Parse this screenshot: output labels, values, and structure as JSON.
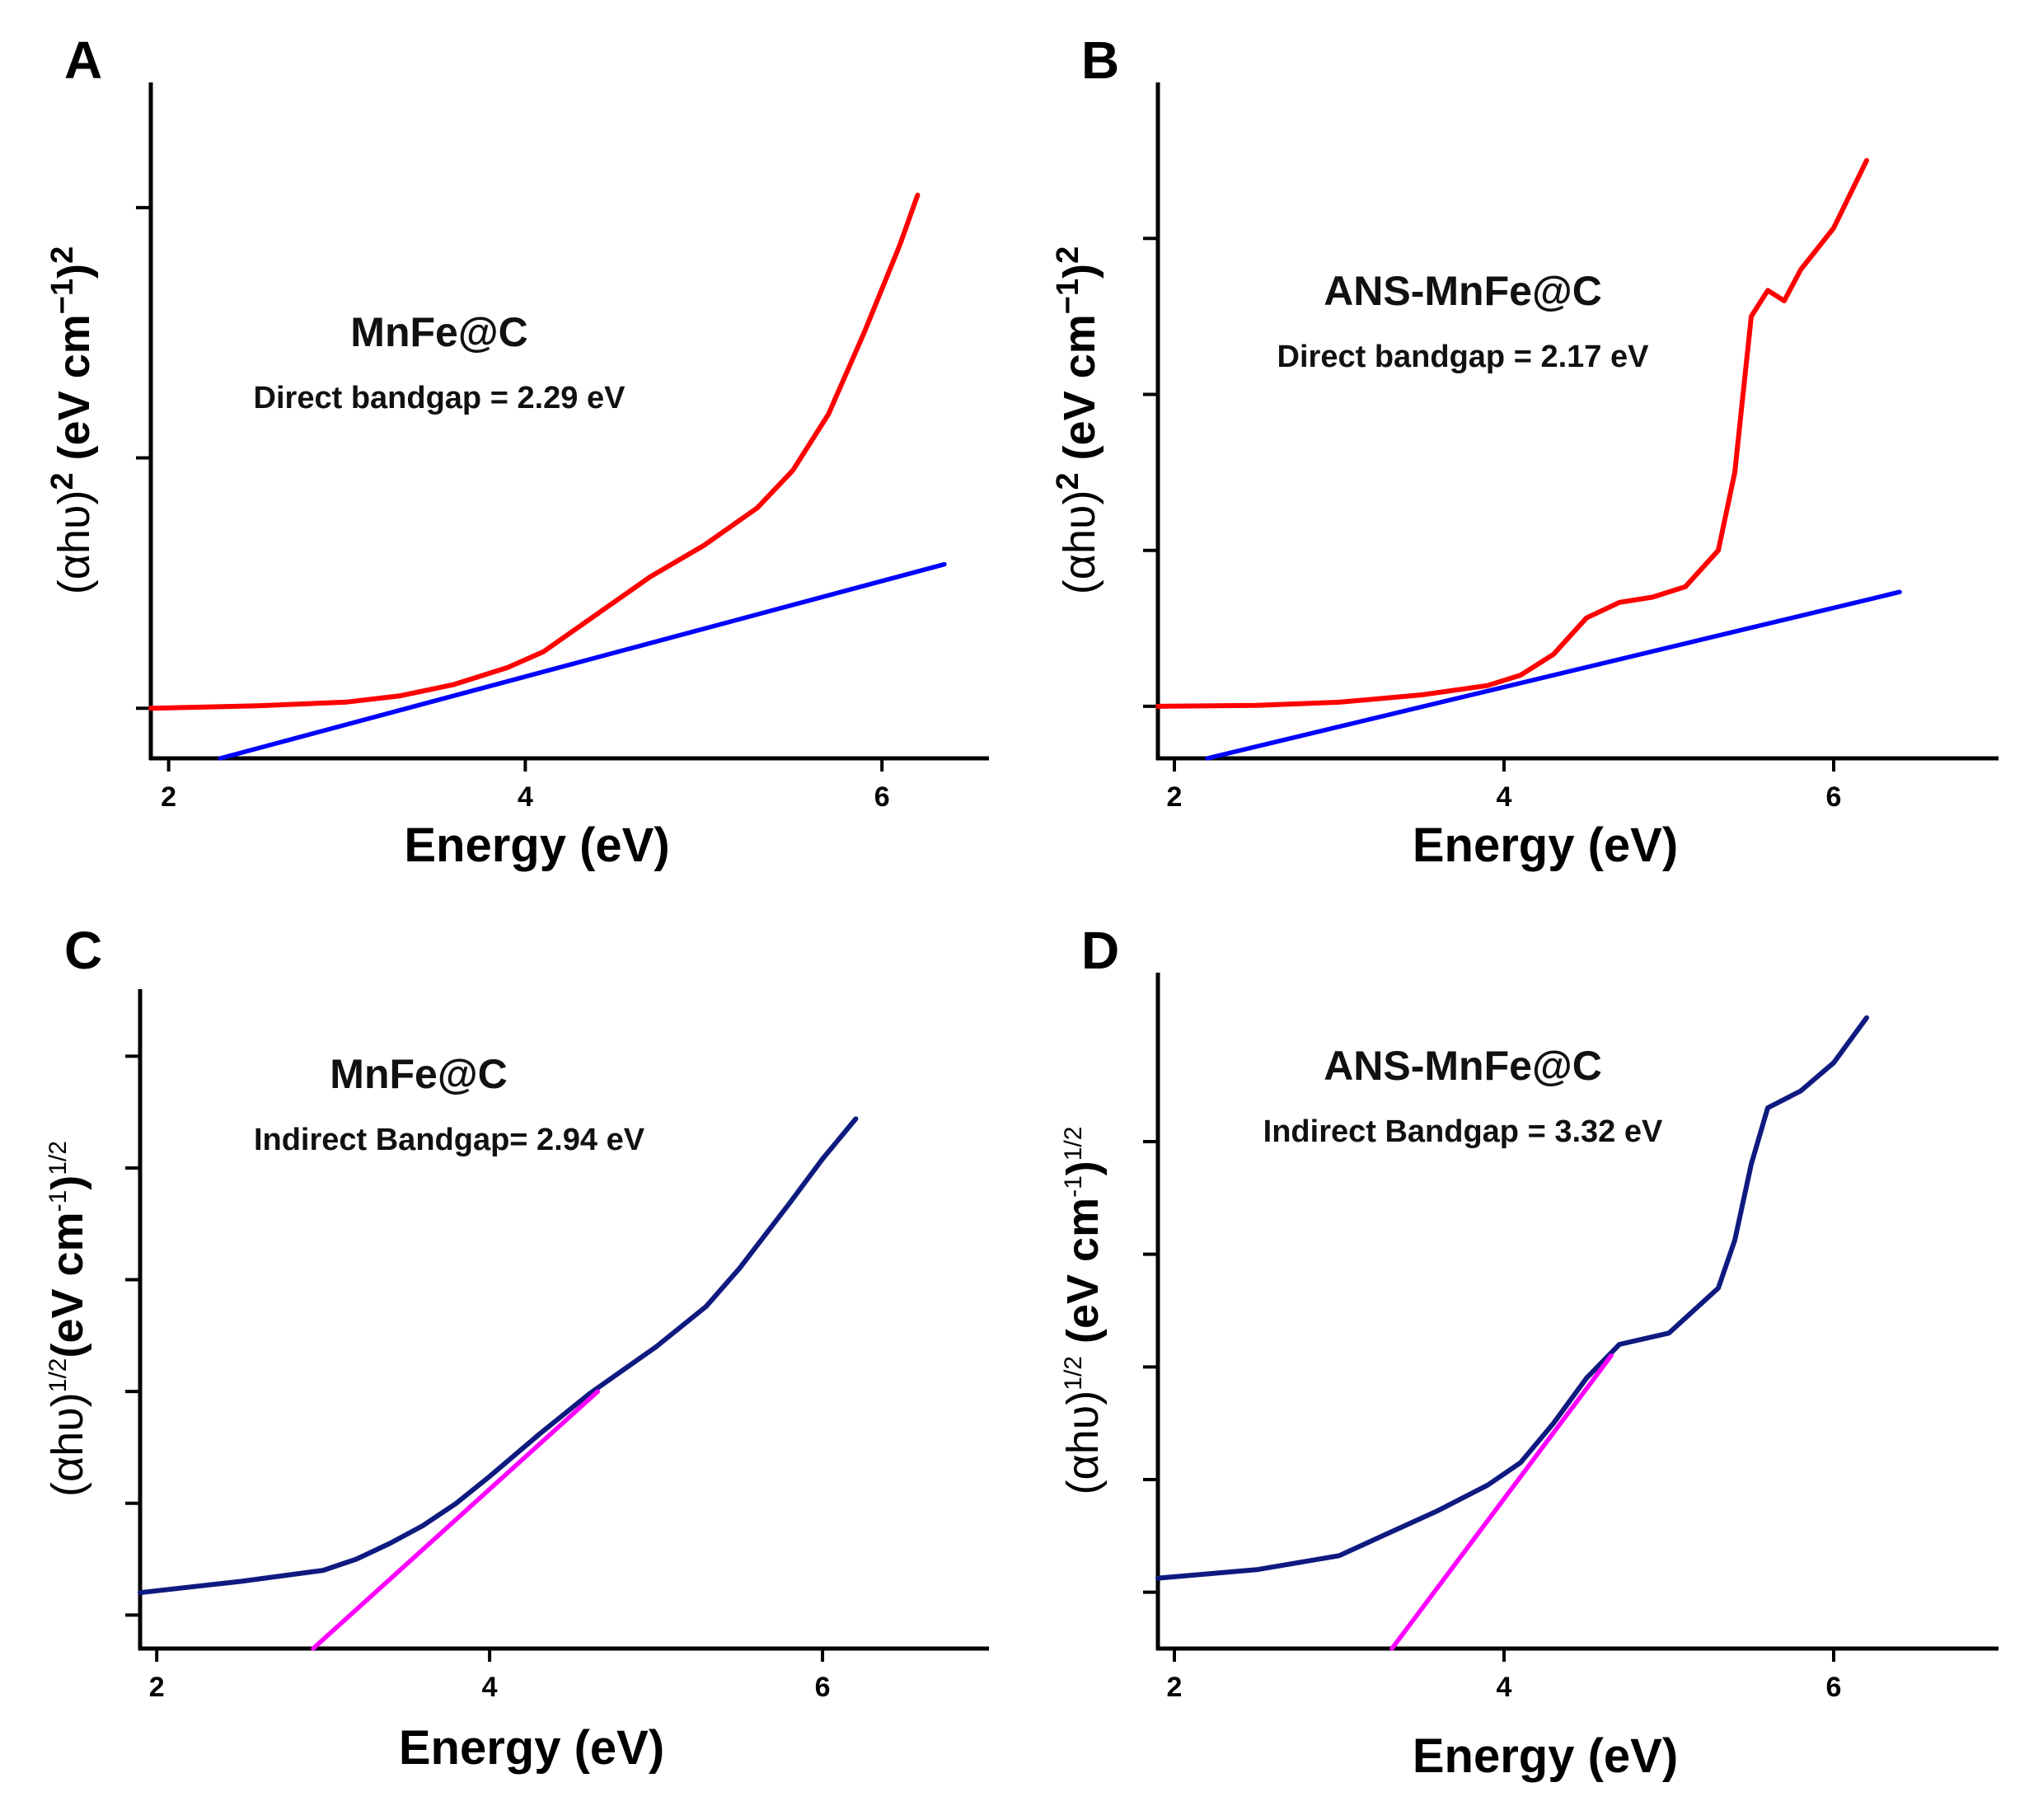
{
  "chart_data": [
    {
      "panel": "A",
      "type": "line",
      "sample": "MnFe@C",
      "annotation": "Direct bandgap = 2.29 eV",
      "xlabel": "Energy (eV)",
      "ylabel_parts": [
        "(αhυ)",
        "2",
        " (eV cm",
        "−1",
        ")",
        "2"
      ],
      "xlim": [
        1.9,
        6.6
      ],
      "ylim": [
        -0.08,
        1.0
      ],
      "xticks": [
        2,
        4,
        6
      ],
      "yticks": [
        0.0,
        0.4,
        0.8
      ],
      "series": [
        {
          "name": "spectrum",
          "color": "#ff0000",
          "x": [
            1.9,
            2.5,
            3.0,
            3.3,
            3.6,
            3.9,
            4.1,
            4.3,
            4.5,
            4.7,
            5.0,
            5.3,
            5.5,
            5.7,
            5.9,
            6.1,
            6.2
          ],
          "y": [
            0.0,
            0.004,
            0.01,
            0.02,
            0.038,
            0.065,
            0.09,
            0.13,
            0.17,
            0.21,
            0.26,
            0.32,
            0.38,
            0.47,
            0.6,
            0.74,
            0.82
          ]
        },
        {
          "name": "tangent",
          "color": "#0000ff",
          "x": [
            2.29,
            6.35
          ],
          "y": [
            -0.08,
            0.23
          ]
        }
      ]
    },
    {
      "panel": "B",
      "type": "line",
      "sample": "ANS-MnFe@C",
      "annotation": "Direct bandgap = 2.17 eV",
      "xlabel": "Energy (eV)",
      "ylabel_parts": [
        "(αhυ)",
        "2",
        " (eV cm",
        "−1",
        ")",
        "2"
      ],
      "xlim": [
        1.9,
        7.0
      ],
      "ylim": [
        -0.1,
        1.2
      ],
      "xticks": [
        2,
        4,
        6
      ],
      "yticks": [
        0.0,
        0.3,
        0.6,
        0.9
      ],
      "series": [
        {
          "name": "spectrum",
          "color": "#ff0000",
          "x": [
            1.9,
            2.5,
            3.0,
            3.5,
            3.9,
            4.1,
            4.3,
            4.5,
            4.7,
            4.9,
            5.1,
            5.3,
            5.4,
            5.5,
            5.6,
            5.7,
            5.8,
            6.0,
            6.2
          ],
          "y": [
            0.0,
            0.002,
            0.008,
            0.022,
            0.04,
            0.06,
            0.1,
            0.17,
            0.2,
            0.21,
            0.23,
            0.3,
            0.45,
            0.75,
            0.8,
            0.78,
            0.84,
            0.92,
            1.05
          ]
        },
        {
          "name": "tangent",
          "color": "#0000ff",
          "x": [
            2.2,
            6.4
          ],
          "y": [
            -0.1,
            0.22
          ]
        }
      ]
    },
    {
      "panel": "C",
      "type": "line",
      "sample": "MnFe@C",
      "annotation": "Indirect Bandgap= 2.94 eV",
      "xlabel": "Energy (eV)",
      "ylabel_parts": [
        "(αhυ)",
        "1/2",
        "(eV cm",
        "-1",
        ")",
        "1/2"
      ],
      "xlim": [
        1.9,
        7.0
      ],
      "ylim": [
        -0.15,
        2.8
      ],
      "xticks": [
        2,
        4,
        6
      ],
      "yticks": [
        0.0,
        0.5,
        1.0,
        1.5,
        2.0,
        2.5
      ],
      "series": [
        {
          "name": "spectrum",
          "color": "#0f1a80",
          "x": [
            1.9,
            2.5,
            3.0,
            3.2,
            3.4,
            3.6,
            3.8,
            4.0,
            4.3,
            4.6,
            5.0,
            5.3,
            5.5,
            5.8,
            6.0,
            6.2
          ],
          "y": [
            0.1,
            0.15,
            0.2,
            0.25,
            0.32,
            0.4,
            0.5,
            0.62,
            0.81,
            0.99,
            1.2,
            1.38,
            1.55,
            1.84,
            2.04,
            2.22
          ]
        },
        {
          "name": "tangent",
          "color": "#ff00ff",
          "x": [
            2.94,
            4.65
          ],
          "y": [
            -0.15,
            1.0
          ]
        }
      ]
    },
    {
      "panel": "D",
      "type": "line",
      "sample": "ANS-MnFe@C",
      "annotation": "Indirect Bandgap = 3.32 eV",
      "xlabel": "Energy (eV)",
      "ylabel_parts": [
        "(αhυ)",
        "1/2",
        " (eV cm",
        "-1",
        ")",
        "1/2"
      ],
      "xlim": [
        1.9,
        7.0
      ],
      "ylim": [
        -0.2,
        2.2
      ],
      "xticks": [
        2,
        4,
        6
      ],
      "yticks": [
        0.0,
        0.4,
        0.8,
        1.2,
        1.6
      ],
      "series": [
        {
          "name": "spectrum",
          "color": "#0f1a80",
          "x": [
            1.9,
            2.5,
            3.0,
            3.3,
            3.6,
            3.9,
            4.1,
            4.3,
            4.5,
            4.7,
            5.0,
            5.3,
            5.4,
            5.5,
            5.6,
            5.7,
            5.8,
            6.0,
            6.2
          ],
          "y": [
            0.05,
            0.08,
            0.13,
            0.21,
            0.29,
            0.38,
            0.46,
            0.6,
            0.76,
            0.88,
            0.92,
            1.08,
            1.25,
            1.52,
            1.72,
            1.75,
            1.78,
            1.88,
            2.04
          ]
        },
        {
          "name": "tangent",
          "color": "#ff00ff",
          "x": [
            3.32,
            4.65
          ],
          "y": [
            -0.2,
            0.84
          ]
        }
      ]
    }
  ]
}
